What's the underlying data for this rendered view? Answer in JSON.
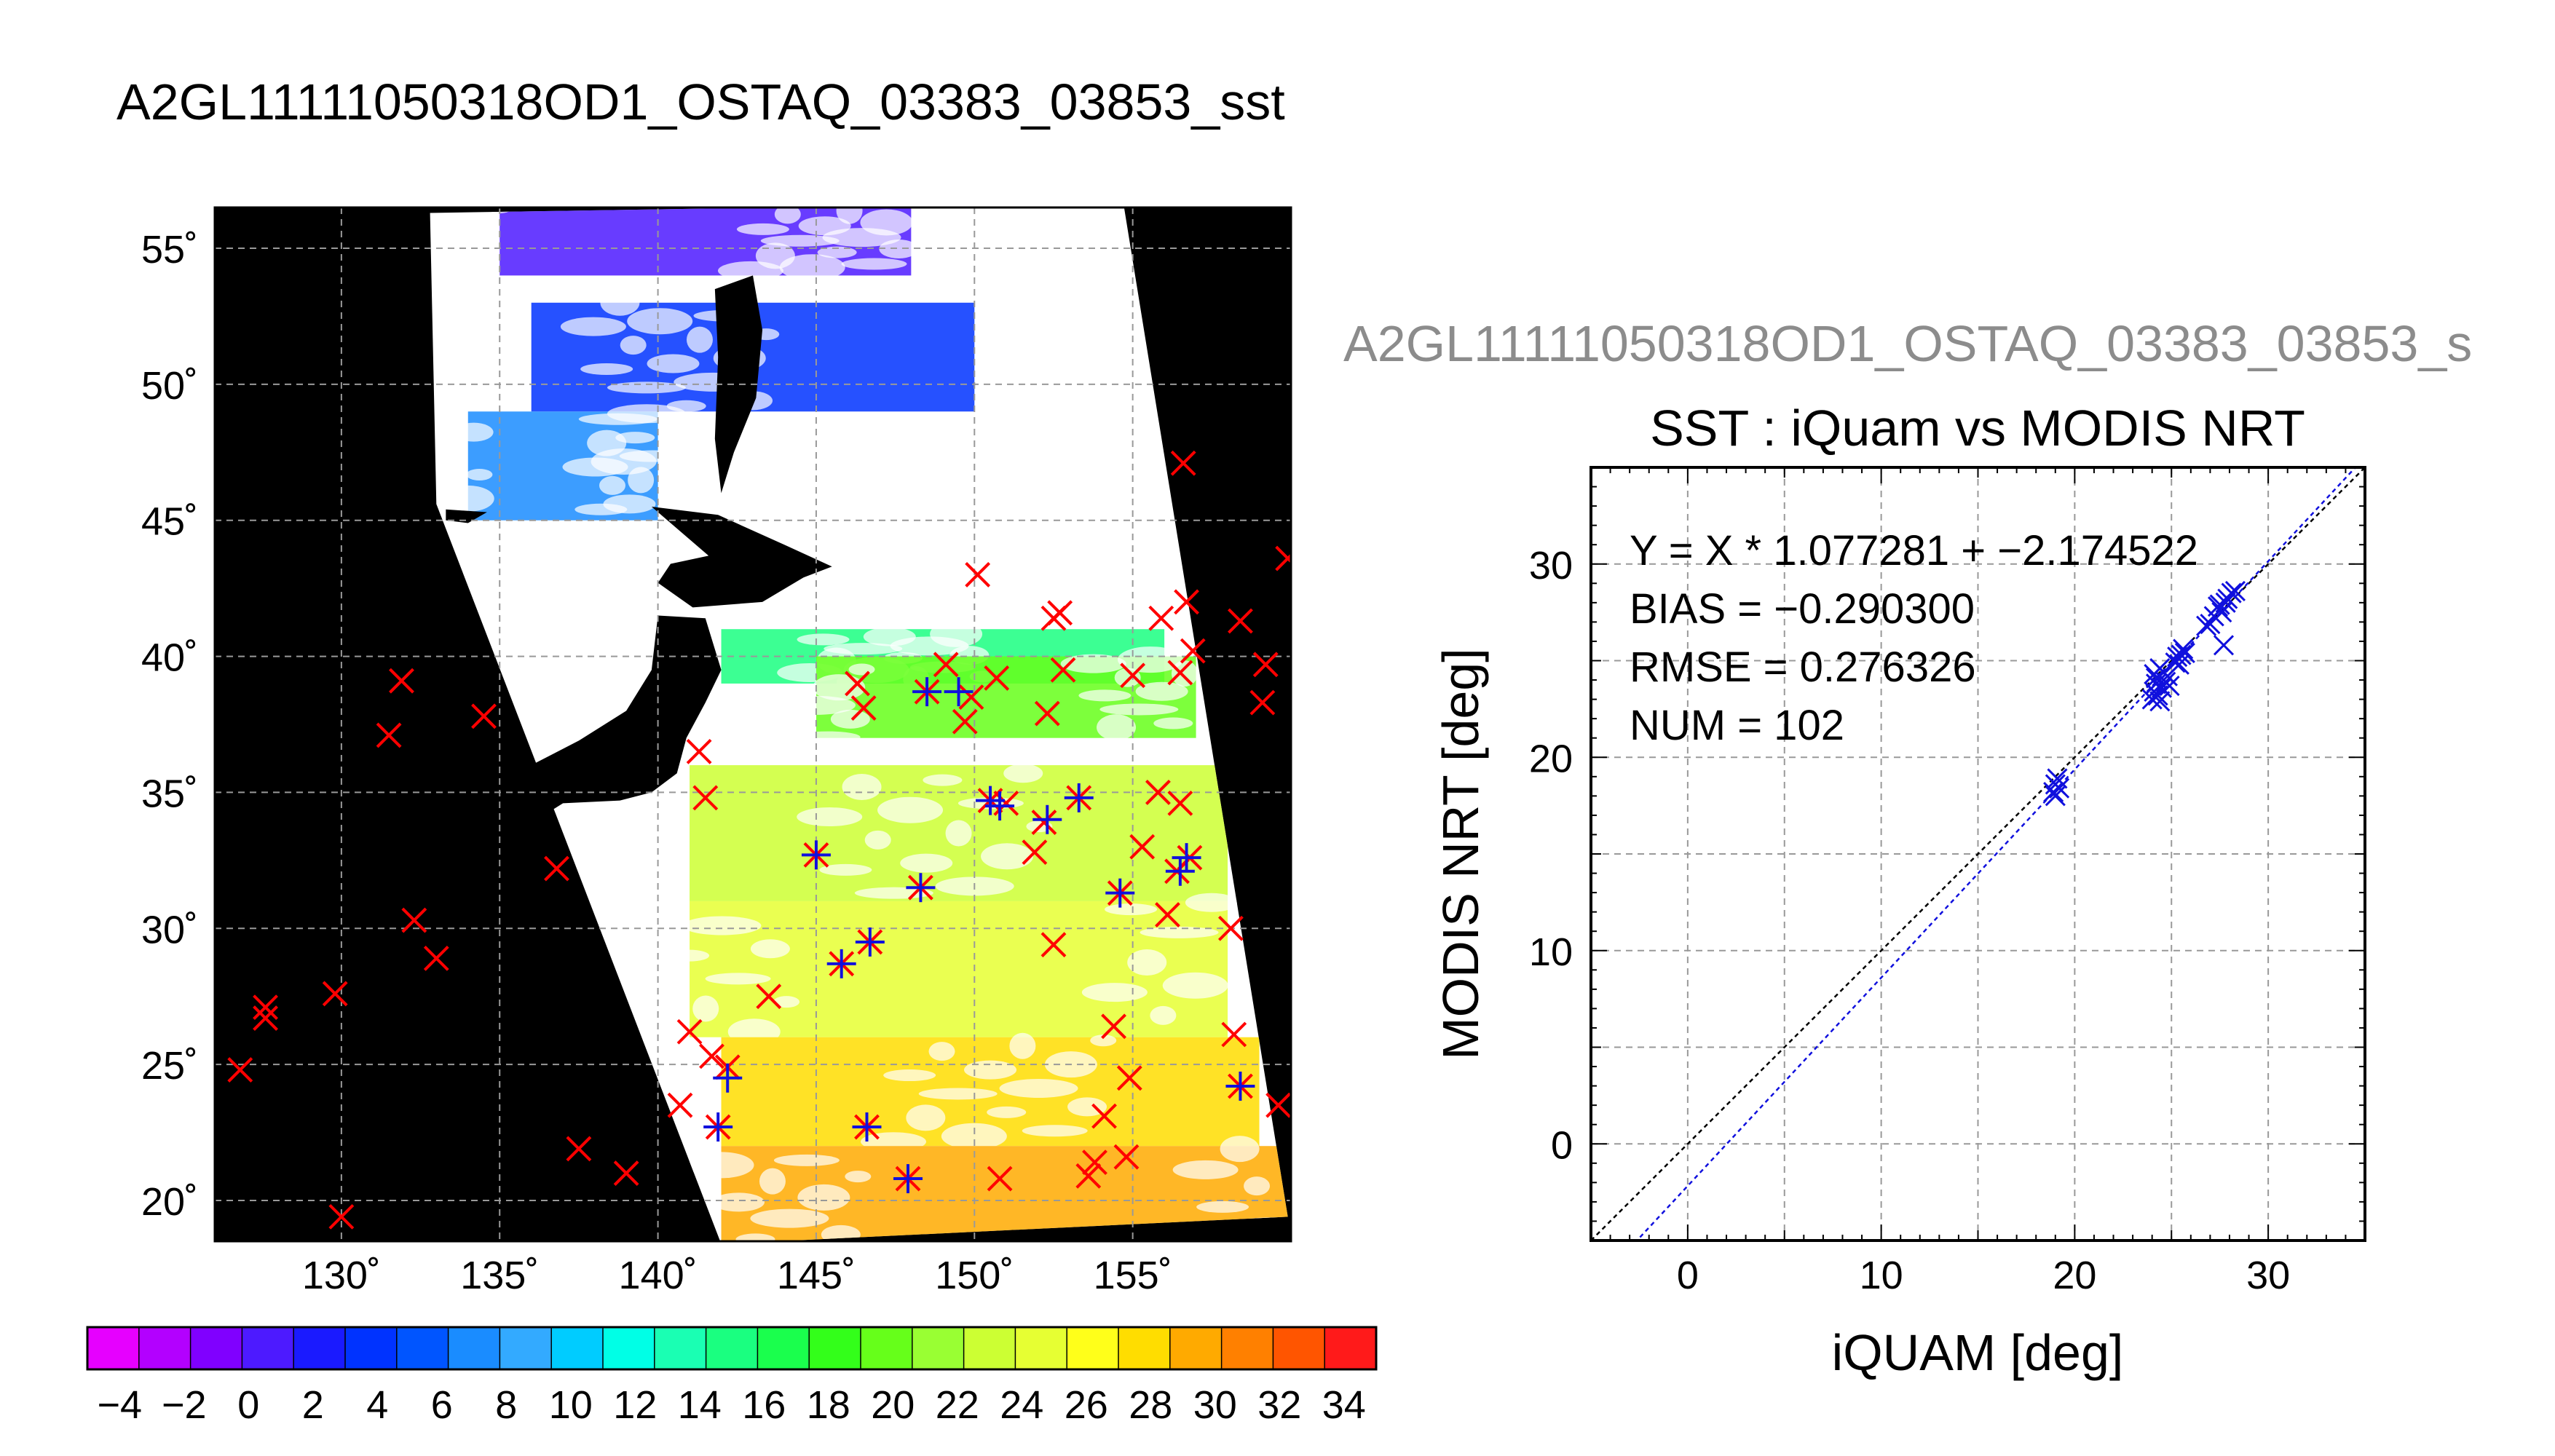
{
  "figure_title": "A2GL11111050318OD1_OSTAQ_03383_03853_sst",
  "scatter_file_title": "A2GL11111050318OD1_OSTAQ_03383_03853_s",
  "colors": {
    "marker_red": "#ff0000",
    "marker_blue": "#1010dd",
    "land": "#000000",
    "cloud": "#ffffff",
    "grid": "#999999",
    "subtitle_gray": "#8c8c8c"
  },
  "chart_data": [
    {
      "type": "heatmap",
      "title": "",
      "xlabel": "",
      "ylabel": "",
      "xlim": [
        126,
        160
      ],
      "ylim": [
        18.5,
        56.5
      ],
      "x_ticks": [
        130,
        135,
        140,
        145,
        150,
        155
      ],
      "x_tick_labels": [
        "130˚",
        "135˚",
        "140˚",
        "145˚",
        "150˚",
        "155˚"
      ],
      "y_ticks": [
        20,
        25,
        30,
        35,
        40,
        45,
        50,
        55
      ],
      "y_tick_labels": [
        "20˚",
        "25˚",
        "30˚",
        "35˚",
        "40˚",
        "45˚",
        "50˚",
        "55˚"
      ],
      "grid": true,
      "colorbar": {
        "min": -5,
        "max": 35,
        "step": 2,
        "tick_values": [
          -4,
          -2,
          0,
          2,
          4,
          6,
          8,
          10,
          12,
          14,
          16,
          18,
          20,
          22,
          24,
          26,
          28,
          30,
          32,
          34
        ],
        "tick_labels": [
          "−4",
          "−2",
          "0",
          "2",
          "4",
          "6",
          "8",
          "10",
          "12",
          "14",
          "16",
          "18",
          "20",
          "22",
          "24",
          "26",
          "28",
          "30",
          "32",
          "34"
        ],
        "colors": [
          "#e600ff",
          "#b300ff",
          "#8000ff",
          "#4d1aff",
          "#1a1aff",
          "#0033ff",
          "#0055ff",
          "#1a8cff",
          "#33aaff",
          "#00ccff",
          "#00ffe6",
          "#1affb3",
          "#1aff80",
          "#1aff4d",
          "#33ff1a",
          "#66ff1a",
          "#99ff33",
          "#ccff33",
          "#e6ff33",
          "#ffff1a",
          "#ffdd00",
          "#ffaa00",
          "#ff8000",
          "#ff5500",
          "#ff1a1a"
        ]
      },
      "swath_corners_lonlat": [
        [
          132.8,
          56.3
        ],
        [
          154.7,
          56.7
        ],
        [
          159.9,
          19.4
        ],
        [
          142.0,
          18.4
        ],
        [
          133.0,
          45.6
        ]
      ],
      "sst_regions": [
        {
          "lat_range": [
            54,
            56.5
          ],
          "lon_range": [
            135,
            148
          ],
          "value": 0
        },
        {
          "lat_range": [
            49,
            53
          ],
          "lon_range": [
            136,
            150
          ],
          "value": 3
        },
        {
          "lat_range": [
            45,
            49
          ],
          "lon_range": [
            134,
            140
          ],
          "value": 7
        },
        {
          "lat_range": [
            39,
            41
          ],
          "lon_range": [
            142,
            156
          ],
          "value": 15
        },
        {
          "lat_range": [
            37,
            40
          ],
          "lon_range": [
            145,
            157
          ],
          "value": 20
        },
        {
          "lat_range": [
            31,
            36
          ],
          "lon_range": [
            141,
            158
          ],
          "value": 23
        },
        {
          "lat_range": [
            26,
            31
          ],
          "lon_range": [
            141,
            158
          ],
          "value": 25
        },
        {
          "lat_range": [
            22,
            26
          ],
          "lon_range": [
            142,
            159
          ],
          "value": 27
        },
        {
          "lat_range": [
            18.5,
            22
          ],
          "lon_range": [
            142,
            160
          ],
          "value": 29
        }
      ],
      "buoys_red": [
        [
          126.8,
          24.8
        ],
        [
          127.6,
          27.1
        ],
        [
          127.6,
          26.7
        ],
        [
          129.8,
          27.6
        ],
        [
          130.0,
          19.4
        ],
        [
          131.5,
          37.1
        ],
        [
          131.9,
          39.1
        ],
        [
          132.3,
          30.3
        ],
        [
          133.0,
          28.9
        ],
        [
          134.5,
          37.8
        ],
        [
          136.8,
          32.2
        ],
        [
          137.5,
          21.9
        ],
        [
          139.0,
          21.0
        ],
        [
          140.7,
          23.5
        ],
        [
          141.0,
          26.2
        ],
        [
          141.3,
          36.5
        ],
        [
          141.5,
          34.8
        ],
        [
          141.7,
          25.3
        ],
        [
          141.9,
          22.7
        ],
        [
          142.2,
          24.9
        ],
        [
          143.5,
          27.5
        ],
        [
          145.0,
          32.7
        ],
        [
          145.8,
          28.7
        ],
        [
          146.3,
          39.0
        ],
        [
          146.5,
          38.1
        ],
        [
          146.6,
          22.7
        ],
        [
          146.7,
          29.5
        ],
        [
          147.9,
          20.8
        ],
        [
          148.3,
          31.5
        ],
        [
          148.5,
          38.7
        ],
        [
          149.1,
          39.7
        ],
        [
          149.7,
          37.6
        ],
        [
          149.9,
          38.5
        ],
        [
          150.1,
          43.0
        ],
        [
          150.5,
          34.7
        ],
        [
          150.7,
          39.2
        ],
        [
          150.8,
          20.8
        ],
        [
          151.0,
          34.6
        ],
        [
          151.9,
          32.8
        ],
        [
          152.2,
          33.9
        ],
        [
          152.3,
          37.9
        ],
        [
          152.5,
          29.4
        ],
        [
          152.5,
          41.4
        ],
        [
          152.7,
          41.6
        ],
        [
          152.8,
          39.5
        ],
        [
          153.3,
          34.8
        ],
        [
          153.6,
          20.9
        ],
        [
          153.8,
          21.4
        ],
        [
          154.1,
          23.1
        ],
        [
          154.4,
          26.4
        ],
        [
          154.6,
          31.3
        ],
        [
          154.8,
          21.6
        ],
        [
          154.9,
          24.5
        ],
        [
          155.0,
          39.3
        ],
        [
          155.3,
          33.0
        ],
        [
          155.8,
          35.0
        ],
        [
          155.9,
          41.4
        ],
        [
          156.1,
          30.5
        ],
        [
          156.4,
          32.1
        ],
        [
          156.5,
          34.6
        ],
        [
          156.5,
          39.4
        ],
        [
          156.6,
          47.1
        ],
        [
          156.7,
          42.0
        ],
        [
          156.8,
          32.6
        ],
        [
          156.9,
          40.2
        ],
        [
          158.1,
          30.0
        ],
        [
          158.2,
          26.1
        ],
        [
          158.4,
          24.2
        ],
        [
          158.4,
          41.3
        ],
        [
          159.1,
          38.3
        ],
        [
          159.2,
          39.7
        ],
        [
          159.6,
          23.5
        ],
        [
          159.9,
          43.6
        ]
      ],
      "buoys_blue": [
        [
          141.9,
          22.7
        ],
        [
          142.2,
          24.5
        ],
        [
          145.0,
          32.7
        ],
        [
          145.8,
          28.7
        ],
        [
          146.6,
          22.7
        ],
        [
          146.7,
          29.5
        ],
        [
          147.9,
          20.8
        ],
        [
          148.3,
          31.5
        ],
        [
          148.5,
          38.7
        ],
        [
          149.5,
          38.7
        ],
        [
          150.5,
          34.7
        ],
        [
          150.8,
          34.5
        ],
        [
          152.3,
          34.0
        ],
        [
          153.3,
          34.8
        ],
        [
          154.6,
          31.3
        ],
        [
          156.5,
          32.1
        ],
        [
          156.7,
          32.6
        ],
        [
          158.4,
          24.2
        ]
      ]
    },
    {
      "type": "scatter",
      "title": "SST : iQuam vs MODIS NRT",
      "xlabel": "iQUAM [deg]",
      "ylabel": "MODIS NRT [deg]",
      "xlim": [
        -5,
        35
      ],
      "ylim": [
        -5,
        35
      ],
      "x_ticks": [
        0,
        10,
        20,
        30
      ],
      "y_ticks": [
        0,
        10,
        20,
        30
      ],
      "grid": true,
      "annotations": [
        "Y = X * 1.077281 + −2.174522",
        "BIAS = −0.290300",
        "RMSE = 0.276326",
        "NUM = 102"
      ],
      "fit_line": {
        "slope": 1.077281,
        "intercept": -2.174522
      },
      "one_to_one_line": true,
      "points": [
        [
          18.9,
          18.2
        ],
        [
          19.0,
          18.6
        ],
        [
          19.1,
          18.9
        ],
        [
          19.2,
          18.4
        ],
        [
          19.0,
          18.0
        ],
        [
          24.0,
          23.0
        ],
        [
          24.1,
          23.4
        ],
        [
          24.2,
          23.8
        ],
        [
          24.2,
          24.1
        ],
        [
          24.3,
          23.2
        ],
        [
          24.4,
          22.9
        ],
        [
          24.5,
          23.6
        ],
        [
          24.6,
          24.4
        ],
        [
          24.7,
          23.9
        ],
        [
          24.8,
          24.2
        ],
        [
          24.9,
          23.7
        ],
        [
          24.4,
          24.6
        ],
        [
          24.1,
          24.3
        ],
        [
          25.2,
          24.9
        ],
        [
          25.3,
          25.2
        ],
        [
          25.5,
          25.3
        ],
        [
          25.6,
          25.6
        ],
        [
          25.4,
          24.8
        ],
        [
          25.7,
          25.4
        ],
        [
          26.8,
          26.8
        ],
        [
          27.0,
          26.9
        ],
        [
          27.2,
          27.3
        ],
        [
          27.4,
          27.8
        ],
        [
          27.6,
          27.5
        ],
        [
          27.8,
          28.0
        ],
        [
          27.9,
          28.2
        ],
        [
          28.1,
          28.5
        ],
        [
          28.3,
          28.6
        ],
        [
          27.7,
          25.8
        ],
        [
          27.5,
          27.9
        ]
      ]
    }
  ]
}
